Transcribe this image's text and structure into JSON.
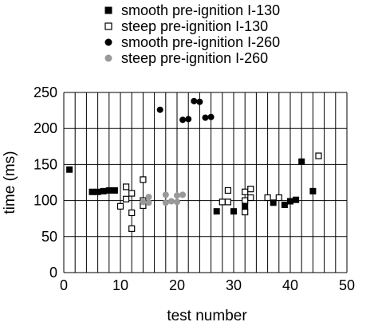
{
  "chart_data": {
    "type": "scatter",
    "title": "",
    "xlabel": "test number",
    "ylabel": "time (ms)",
    "xlim": [
      0,
      50
    ],
    "ylim": [
      0,
      250
    ],
    "x_ticks": [
      0,
      10,
      20,
      30,
      40,
      50
    ],
    "y_ticks": [
      0,
      50,
      100,
      150,
      200,
      250
    ],
    "grid": "vertical lines every 2 units on x, horizontal lines every 50 units on y",
    "legend_position": "top",
    "series": [
      {
        "name": "smooth pre-ignition I-130",
        "marker": "filled-square",
        "color": "#000000",
        "points": [
          [
            1,
            143
          ],
          [
            5,
            112
          ],
          [
            6,
            112
          ],
          [
            7,
            113
          ],
          [
            8,
            114
          ],
          [
            9,
            114
          ],
          [
            27,
            85
          ],
          [
            30,
            85
          ],
          [
            32,
            92
          ],
          [
            37,
            97
          ],
          [
            39,
            94
          ],
          [
            40,
            99
          ],
          [
            41,
            101
          ],
          [
            42,
            154
          ],
          [
            44,
            113
          ]
        ]
      },
      {
        "name": "steep pre-ignition I-130",
        "marker": "hollow-square",
        "color": "#000000",
        "points": [
          [
            10,
            92
          ],
          [
            11,
            119
          ],
          [
            11,
            102
          ],
          [
            12,
            110
          ],
          [
            12,
            83
          ],
          [
            12,
            61
          ],
          [
            14,
            129
          ],
          [
            14,
            100
          ],
          [
            14,
            93
          ],
          [
            28,
            98
          ],
          [
            29,
            114
          ],
          [
            29,
            98
          ],
          [
            32,
            112
          ],
          [
            32,
            100
          ],
          [
            32,
            84
          ],
          [
            33,
            116
          ],
          [
            33,
            104
          ],
          [
            36,
            104
          ],
          [
            38,
            104
          ],
          [
            45,
            162
          ]
        ]
      },
      {
        "name": "smooth pre-ignition I-260",
        "marker": "filled-circle",
        "color": "#000000",
        "points": [
          [
            17,
            226
          ],
          [
            21,
            212
          ],
          [
            22,
            213
          ],
          [
            23,
            238
          ],
          [
            24,
            237
          ],
          [
            25,
            215
          ],
          [
            26,
            216
          ]
        ]
      },
      {
        "name": "steep pre-ignition I-260",
        "marker": "filled-circle",
        "color": "#999999",
        "points": [
          [
            14,
            98
          ],
          [
            15,
            105
          ],
          [
            15,
            97
          ],
          [
            18,
            108
          ],
          [
            18,
            97
          ],
          [
            19,
            99
          ],
          [
            20,
            107
          ],
          [
            20,
            98
          ],
          [
            21,
            108
          ]
        ]
      }
    ]
  }
}
